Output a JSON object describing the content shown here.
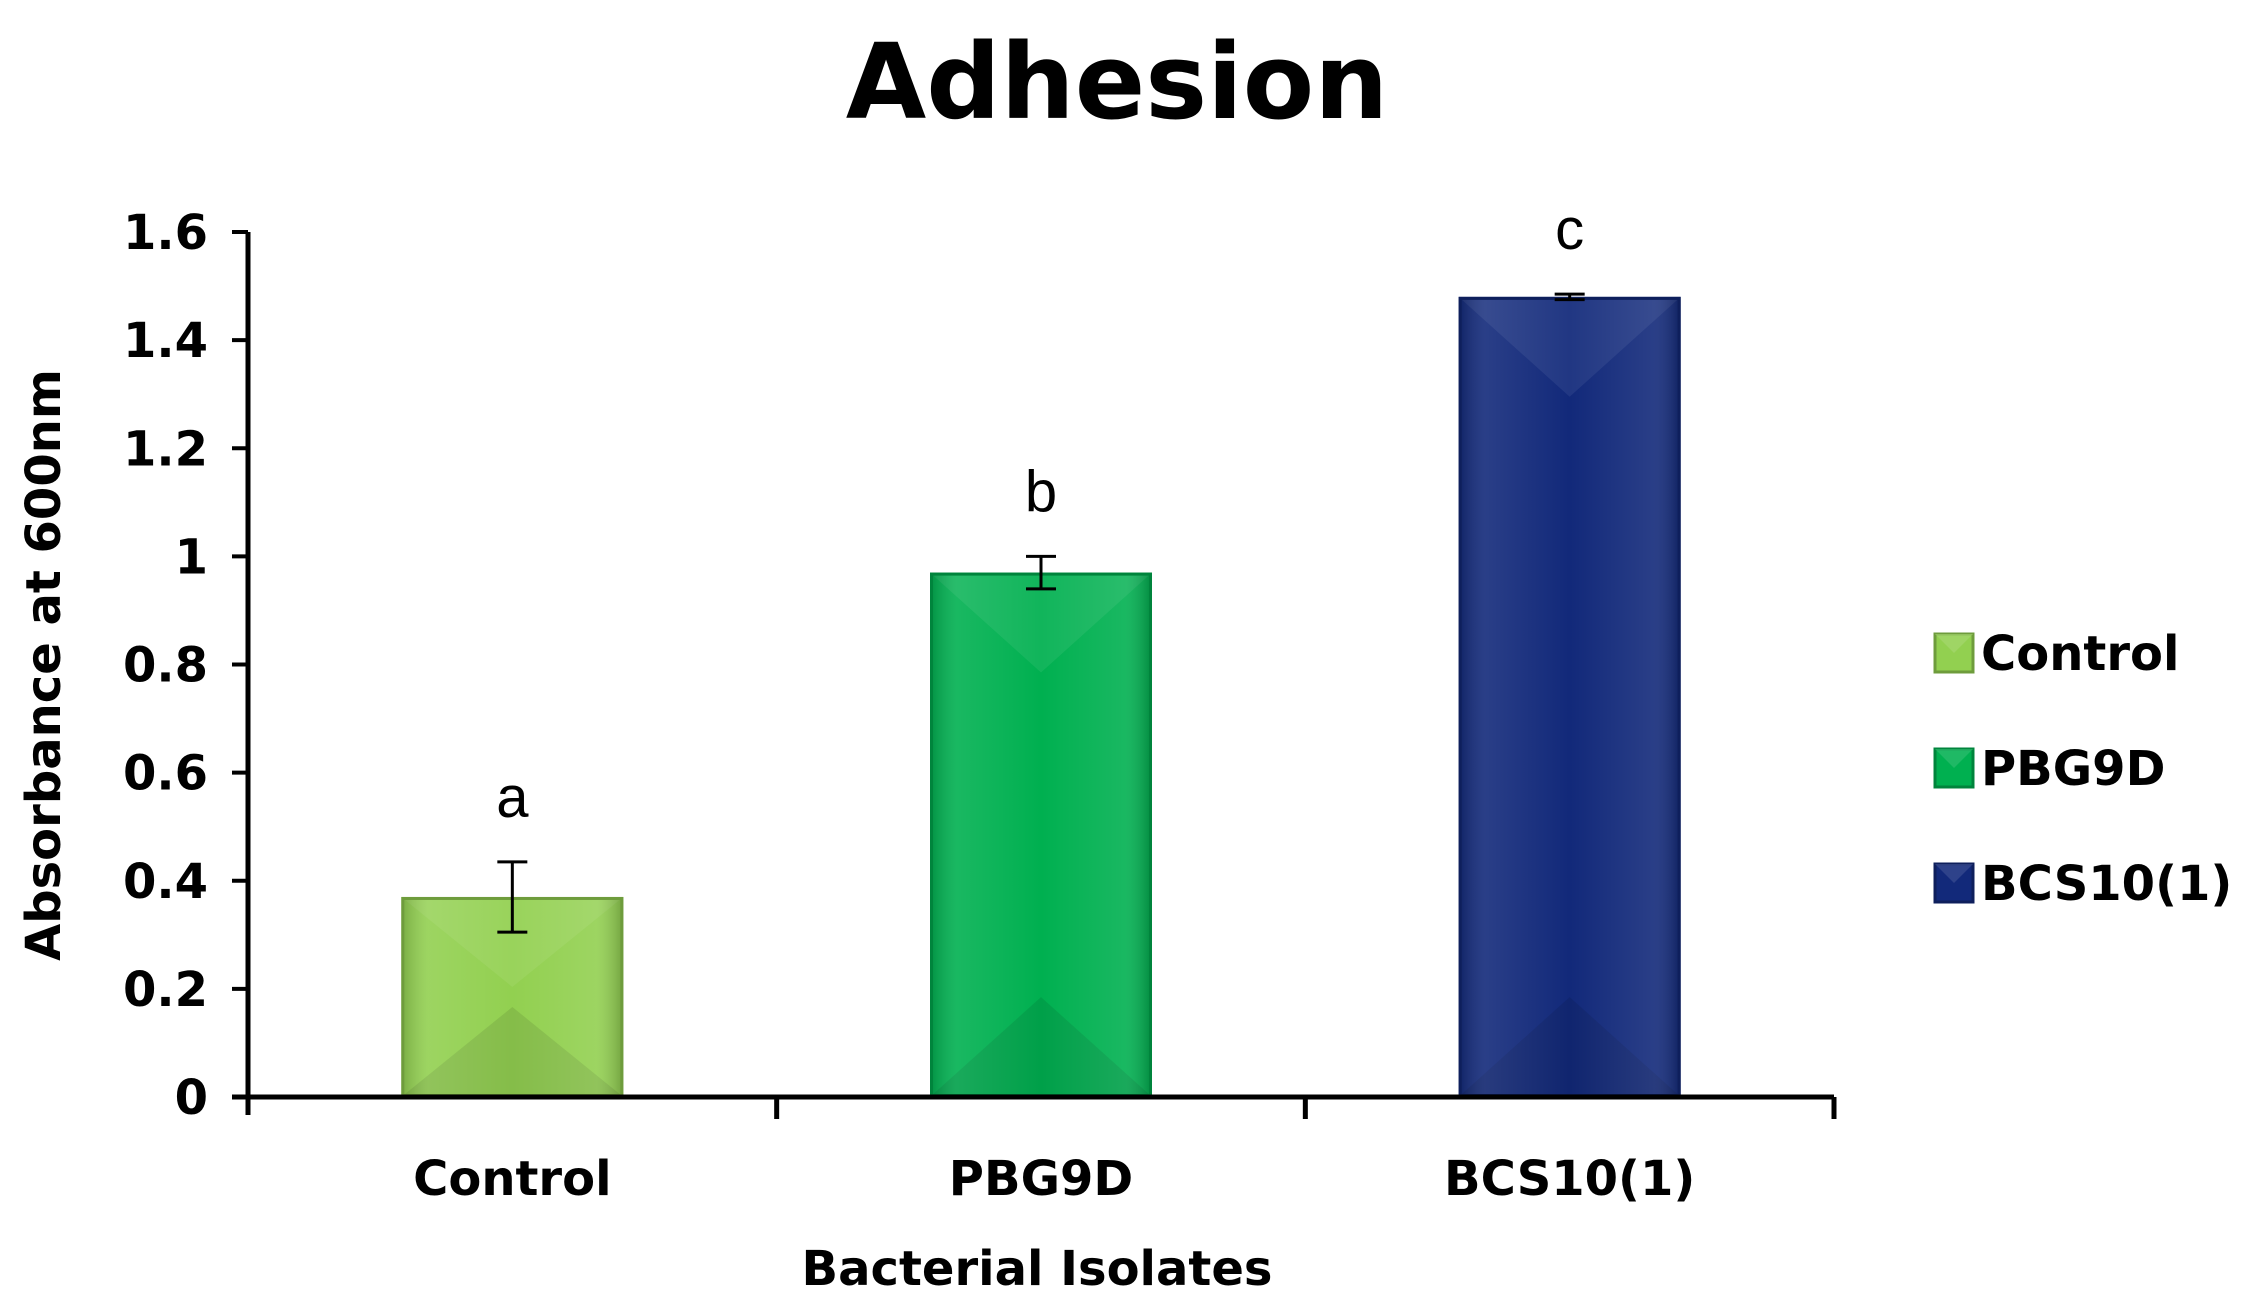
{
  "chart_data": {
    "type": "bar",
    "title": "Adhesion",
    "xlabel": "Bacterial Isolates",
    "ylabel": "Absorbance at 600nm",
    "categories": [
      "Control",
      "PBG9D",
      "BCS10(1)"
    ],
    "values": [
      0.37,
      0.97,
      1.48
    ],
    "error": [
      0.065,
      0.03,
      0.005
    ],
    "significance_labels": [
      "a",
      "b",
      "c"
    ],
    "colors": [
      "#92d050",
      "#00b050",
      "#12297a"
    ],
    "ylim": [
      0,
      1.6
    ],
    "yticks": [
      {
        "value": 0,
        "label": "0"
      },
      {
        "value": 0.2,
        "label": "0.2"
      },
      {
        "value": 0.4,
        "label": "0.4"
      },
      {
        "value": 0.6,
        "label": "0.6"
      },
      {
        "value": 0.8,
        "label": "0.8"
      },
      {
        "value": 1.0,
        "label": "1"
      },
      {
        "value": 1.2,
        "label": "1.2"
      },
      {
        "value": 1.4,
        "label": "1.4"
      },
      {
        "value": 1.6,
        "label": "1.6"
      }
    ],
    "grid": false,
    "legend": {
      "placement": "right",
      "entries": [
        "Control",
        "PBG9D",
        "BCS10(1)"
      ]
    }
  }
}
